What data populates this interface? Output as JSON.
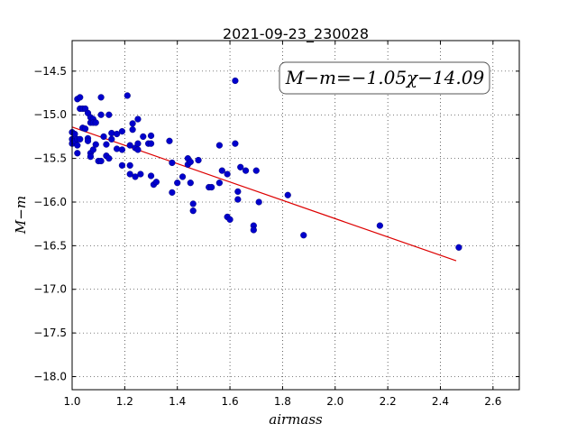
{
  "chart_data": {
    "type": "scatter",
    "title": "2021-09-23_230028",
    "xlabel": "airmass",
    "ylabel": "M−m",
    "xlim": [
      1.0,
      2.7
    ],
    "ylim": [
      -18.15,
      -14.15
    ],
    "y_inverted": false,
    "xticks": [
      1.0,
      1.2,
      1.4,
      1.6,
      1.8,
      2.0,
      2.2,
      2.4,
      2.6
    ],
    "xtick_labels": [
      "1.0",
      "1.2",
      "1.4",
      "1.6",
      "1.8",
      "2.0",
      "2.2",
      "2.4",
      "2.6"
    ],
    "yticks": [
      -14.5,
      -15.0,
      -15.5,
      -16.0,
      -16.5,
      -17.0,
      -17.5,
      -18.0
    ],
    "ytick_labels": [
      "−14.5",
      "−15.0",
      "−15.5",
      "−16.0",
      "−16.5",
      "−17.0",
      "−17.5",
      "−18.0"
    ],
    "grid": true,
    "point_color": "#0000cc",
    "fit_color": "#dd0000",
    "annotation": "M−m=−1.05χ−14.09",
    "fit": {
      "slope": -1.05,
      "intercept": -14.09,
      "x_range": [
        1.0,
        2.46
      ]
    },
    "points": [
      [
        1.0,
        -15.2
      ],
      [
        1.0,
        -15.28
      ],
      [
        1.0,
        -15.33
      ],
      [
        1.01,
        -15.3
      ],
      [
        1.01,
        -15.22
      ],
      [
        1.02,
        -14.82
      ],
      [
        1.02,
        -15.44
      ],
      [
        1.02,
        -15.28
      ],
      [
        1.02,
        -15.35
      ],
      [
        1.03,
        -14.8
      ],
      [
        1.03,
        -14.93
      ],
      [
        1.03,
        -15.28
      ],
      [
        1.04,
        -14.93
      ],
      [
        1.04,
        -15.15
      ],
      [
        1.05,
        -14.93
      ],
      [
        1.05,
        -15.16
      ],
      [
        1.06,
        -14.98
      ],
      [
        1.06,
        -15.27
      ],
      [
        1.06,
        -15.3
      ],
      [
        1.07,
        -15.03
      ],
      [
        1.07,
        -15.09
      ],
      [
        1.07,
        -15.44
      ],
      [
        1.07,
        -15.48
      ],
      [
        1.08,
        -15.05
      ],
      [
        1.08,
        -15.09
      ],
      [
        1.08,
        -15.4
      ],
      [
        1.09,
        -15.09
      ],
      [
        1.09,
        -15.34
      ],
      [
        1.1,
        -15.53
      ],
      [
        1.11,
        -14.8
      ],
      [
        1.11,
        -15.0
      ],
      [
        1.11,
        -15.53
      ],
      [
        1.12,
        -15.25
      ],
      [
        1.13,
        -15.47
      ],
      [
        1.13,
        -15.34
      ],
      [
        1.14,
        -15.0
      ],
      [
        1.14,
        -15.5
      ],
      [
        1.15,
        -15.21
      ],
      [
        1.15,
        -15.28
      ],
      [
        1.17,
        -15.22
      ],
      [
        1.17,
        -15.39
      ],
      [
        1.19,
        -15.19
      ],
      [
        1.19,
        -15.4
      ],
      [
        1.19,
        -15.58
      ],
      [
        1.21,
        -14.78
      ],
      [
        1.22,
        -15.35
      ],
      [
        1.22,
        -15.58
      ],
      [
        1.22,
        -15.68
      ],
      [
        1.23,
        -15.1
      ],
      [
        1.23,
        -15.17
      ],
      [
        1.24,
        -15.38
      ],
      [
        1.24,
        -15.71
      ],
      [
        1.25,
        -15.05
      ],
      [
        1.25,
        -15.33
      ],
      [
        1.25,
        -15.4
      ],
      [
        1.26,
        -15.68
      ],
      [
        1.27,
        -15.25
      ],
      [
        1.29,
        -15.33
      ],
      [
        1.3,
        -15.24
      ],
      [
        1.3,
        -15.33
      ],
      [
        1.3,
        -15.7
      ],
      [
        1.31,
        -15.8
      ],
      [
        1.32,
        -15.77
      ],
      [
        1.37,
        -15.3
      ],
      [
        1.38,
        -15.89
      ],
      [
        1.38,
        -15.55
      ],
      [
        1.4,
        -15.78
      ],
      [
        1.42,
        -15.71
      ],
      [
        1.44,
        -15.5
      ],
      [
        1.44,
        -15.57
      ],
      [
        1.45,
        -15.54
      ],
      [
        1.45,
        -15.78
      ],
      [
        1.46,
        -16.02
      ],
      [
        1.46,
        -16.1
      ],
      [
        1.48,
        -15.52
      ],
      [
        1.52,
        -15.83
      ],
      [
        1.53,
        -15.83
      ],
      [
        1.56,
        -15.78
      ],
      [
        1.56,
        -15.35
      ],
      [
        1.57,
        -15.64
      ],
      [
        1.59,
        -15.68
      ],
      [
        1.59,
        -16.17
      ],
      [
        1.6,
        -16.2
      ],
      [
        1.62,
        -14.61
      ],
      [
        1.62,
        -15.33
      ],
      [
        1.63,
        -15.88
      ],
      [
        1.63,
        -15.97
      ],
      [
        1.64,
        -15.6
      ],
      [
        1.66,
        -15.64
      ],
      [
        1.69,
        -16.27
      ],
      [
        1.69,
        -16.32
      ],
      [
        1.7,
        -15.64
      ],
      [
        1.71,
        -16.0
      ],
      [
        1.82,
        -15.92
      ],
      [
        1.88,
        -16.38
      ],
      [
        2.17,
        -16.27
      ],
      [
        2.47,
        -16.52
      ]
    ]
  }
}
